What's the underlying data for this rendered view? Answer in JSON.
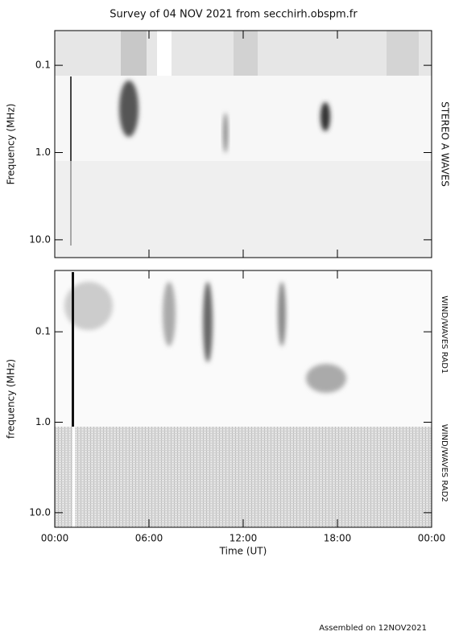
{
  "title": "Survey of 04 NOV 2021 from secchirh.obspm.fr",
  "footer": "Assembled on 12NOV2021",
  "chart_data": [
    {
      "type": "heatmap",
      "ylabel": "Frequency (MHz)",
      "instrument_labels": [
        "STEREO A WAVES"
      ],
      "xlim": [
        0,
        24
      ],
      "ylim": [
        0.04,
        16
      ],
      "log_y": true,
      "y_direction": "down",
      "yticks": [
        0.1,
        {
          "value": 1,
          "label": "1.0"
        },
        {
          "value": 10,
          "label": "10.0"
        }
      ]
    },
    {
      "type": "heatmap",
      "ylabel": "frequency (MHz)",
      "xlabel": "Time (UT)",
      "instrument_labels": [
        "WIND/WAVES RAD1",
        "WIND/WAVES RAD2"
      ],
      "xlim": [
        0,
        24
      ],
      "ylim": [
        0.021,
        14.5
      ],
      "log_y": true,
      "y_direction": "down",
      "xticks": [
        {
          "value": 0,
          "label": "00:00"
        },
        {
          "value": 6,
          "label": "06:00"
        },
        {
          "value": 12,
          "label": "12:00"
        },
        {
          "value": 18,
          "label": "18:00"
        },
        {
          "value": 24,
          "label": "00:00"
        }
      ],
      "yticks": [
        0.1,
        {
          "value": 1,
          "label": "1.0"
        },
        {
          "value": 10,
          "label": "10.0"
        }
      ]
    }
  ]
}
